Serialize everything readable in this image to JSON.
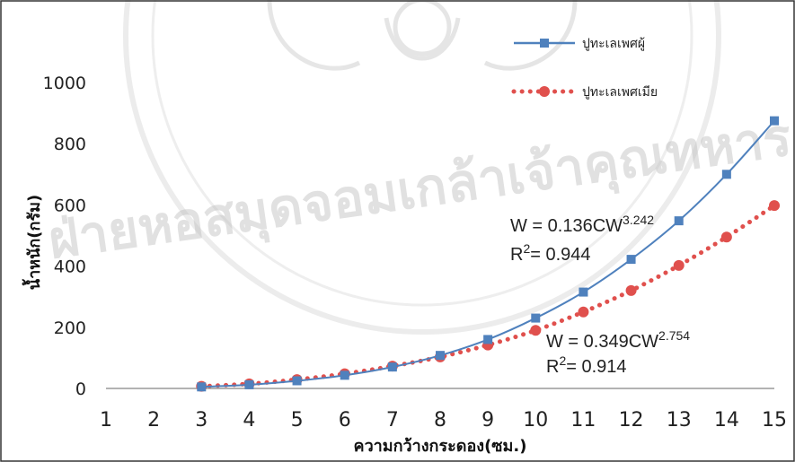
{
  "chart_data": {
    "type": "line",
    "xlabel": "ความกว้างกระดอง(ซม.)",
    "ylabel": "น้ำหนัก(กรัม)",
    "xlim": [
      1,
      15
    ],
    "ylim": [
      0,
      1000
    ],
    "x_ticks": [
      "1",
      "2",
      "3",
      "4",
      "5",
      "6",
      "7",
      "8",
      "9",
      "10",
      "11",
      "12",
      "13",
      "14",
      "15"
    ],
    "y_ticks": [
      "0",
      "200",
      "400",
      "600",
      "800",
      "1000"
    ],
    "grid": false,
    "legend": "top-right",
    "series": [
      {
        "name": "ปูทะเลเพศผู้",
        "color": "#4f81bd",
        "marker": "square",
        "line": "solid",
        "x": [
          3,
          4,
          5,
          6,
          7,
          8,
          9,
          10,
          11,
          12,
          13,
          14,
          15
        ],
        "y": [
          5,
          12,
          25,
          43,
          70,
          108,
          160,
          230,
          315,
          422,
          548,
          700,
          875
        ]
      },
      {
        "name": "ปูทะเลเพศเมีย",
        "color": "#e0504d",
        "marker": "circle",
        "line": "dotted",
        "x": [
          3,
          4,
          5,
          6,
          7,
          8,
          9,
          10,
          11,
          12,
          13,
          14,
          15
        ],
        "y": [
          7,
          15,
          29,
          48,
          73,
          103,
          142,
          190,
          250,
          320,
          402,
          495,
          598
        ]
      }
    ],
    "annotations": [
      {
        "eq_prefix": "W = 0.136CW",
        "eq_exp": "3.242",
        "r2_label": "R",
        "r2_sup": "2",
        "r2_value": "= 0.944"
      },
      {
        "eq_prefix": "W = 0.349CW",
        "eq_exp": "2.754",
        "r2_label": "R",
        "r2_sup": "2",
        "r2_value": "= 0.914"
      }
    ]
  },
  "watermark": "ฝ่ายหอสมุดจอมเกล้าเจ้าคุณทหาร"
}
